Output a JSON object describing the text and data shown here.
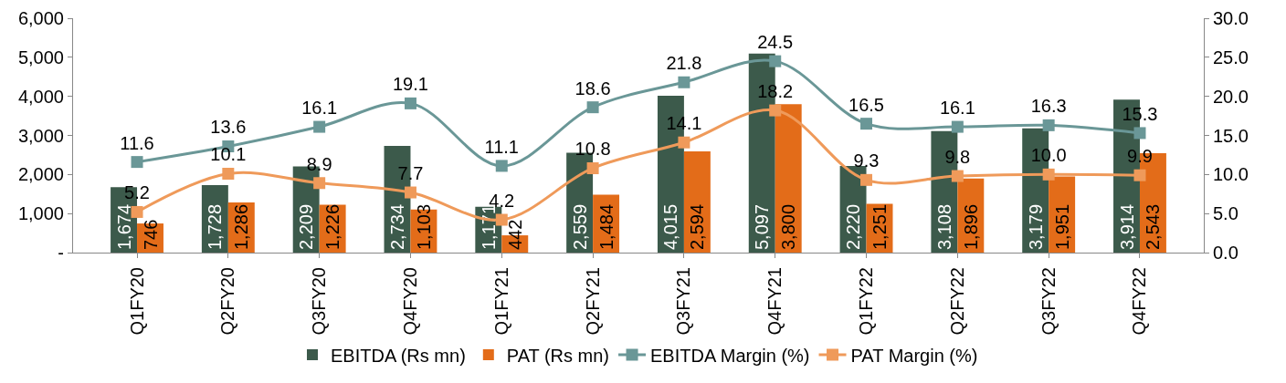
{
  "chart_data": {
    "type": "bar",
    "categories": [
      "Q1FY20",
      "Q2FY20",
      "Q3FY20",
      "Q4FY20",
      "Q1FY21",
      "Q2FY21",
      "Q3FY21",
      "Q4FY21",
      "Q1FY22",
      "Q2FY22",
      "Q3FY22",
      "Q4FY22"
    ],
    "series": [
      {
        "name": "EBITDA (Rs mn)",
        "color": "#3c5a4b",
        "values": [
          1674,
          1728,
          2209,
          2734,
          1171,
          2559,
          4015,
          5097,
          2220,
          3108,
          3179,
          3914
        ],
        "value_labels": [
          "1,674",
          "1,728",
          "2,209",
          "2,734",
          "1,171",
          "2,559",
          "4,015",
          "5,097",
          "2,220",
          "3,108",
          "3,179",
          "3,914"
        ]
      },
      {
        "name": "PAT (Rs mn)",
        "color": "#e36c19",
        "values": [
          746,
          1286,
          1226,
          1103,
          442,
          1484,
          2594,
          3800,
          1251,
          1896,
          1951,
          2543
        ],
        "value_labels": [
          "746",
          "1,286",
          "1,226",
          "1,103",
          "442",
          "1,484",
          "2,594",
          "3,800",
          "1,251",
          "1,896",
          "1,951",
          "2,543"
        ]
      },
      {
        "name": "EBITDA Margin (%)",
        "type": "line",
        "axis": "y2",
        "color": "#6a9797",
        "values": [
          11.6,
          13.6,
          16.1,
          19.1,
          11.1,
          18.6,
          21.8,
          24.5,
          16.5,
          16.1,
          16.3,
          15.3
        ],
        "value_labels": [
          "11.6",
          "13.6",
          "16.1",
          "19.1",
          "11.1",
          "18.6",
          "21.8",
          "24.5",
          "16.5",
          "16.1",
          "16.3",
          "15.3"
        ]
      },
      {
        "name": "PAT Margin (%)",
        "type": "line",
        "axis": "y2",
        "color": "#ef9a5a",
        "values": [
          5.2,
          10.1,
          8.9,
          7.7,
          4.2,
          10.8,
          14.1,
          18.2,
          9.3,
          9.8,
          10.0,
          9.9
        ],
        "value_labels": [
          "5.2",
          "10.1",
          "8.9",
          "7.7",
          "4.2",
          "10.8",
          "14.1",
          "18.2",
          "9.3",
          "9.8",
          "10.0",
          "9.9"
        ]
      }
    ],
    "ylim": [
      0,
      6000
    ],
    "yticks": [
      {
        "value": 0,
        "label": "-"
      },
      {
        "value": 1000,
        "label": "1,000"
      },
      {
        "value": 2000,
        "label": "2,000"
      },
      {
        "value": 3000,
        "label": "3,000"
      },
      {
        "value": 4000,
        "label": "4,000"
      },
      {
        "value": 5000,
        "label": "5,000"
      },
      {
        "value": 6000,
        "label": "6,000"
      }
    ],
    "y2lim": [
      0,
      30
    ],
    "y2ticks": [
      {
        "value": 0,
        "label": "0.0"
      },
      {
        "value": 5,
        "label": "5.0"
      },
      {
        "value": 10,
        "label": "10.0"
      },
      {
        "value": 15,
        "label": "15.0"
      },
      {
        "value": 20,
        "label": "20.0"
      },
      {
        "value": 25,
        "label": "25.0"
      },
      {
        "value": 30,
        "label": "30.0"
      }
    ],
    "legend": "bottom",
    "grid": false,
    "marker": "square"
  }
}
